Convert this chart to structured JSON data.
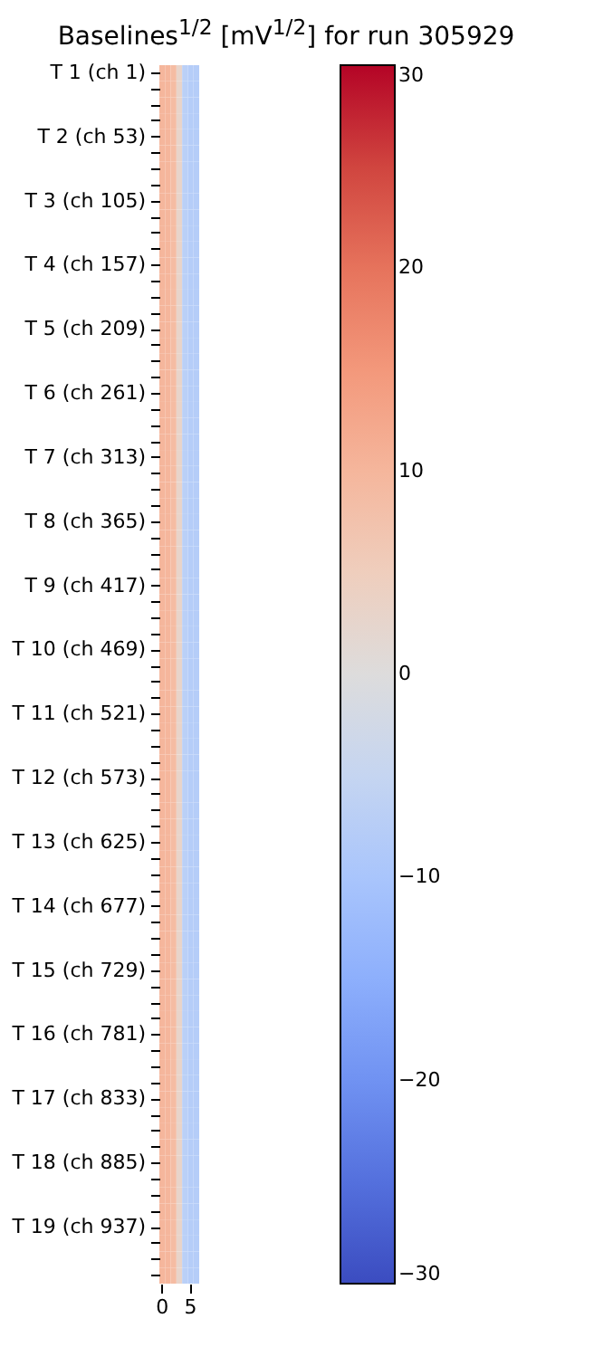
{
  "chart_data": {
    "type": "heatmap",
    "title": "Baselines$^{1/2}$ [mV$^{1/2}$] for run 305929",
    "categories": [
      "0",
      null,
      null,
      null,
      null,
      "5",
      null
    ],
    "y_categories": [
      "T 1 (ch 1)",
      null,
      null,
      null,
      "T 2 (ch 53)",
      null,
      null,
      null,
      "T 3 (ch 105)",
      null,
      null,
      null,
      "T 4 (ch 157)",
      null,
      null,
      null,
      "T 5 (ch 209)",
      null,
      null,
      null,
      "T 6 (ch 261)",
      null,
      null,
      null,
      "T 7 (ch 313)",
      null,
      null,
      null,
      "T 8 (ch 365)",
      null,
      null,
      null,
      "T 9 (ch 417)",
      null,
      null,
      null,
      "T 10 (ch 469)",
      null,
      null,
      null,
      "T 11 (ch 521)",
      null,
      null,
      null,
      "T 12 (ch 573)",
      null,
      null,
      null,
      "T 13 (ch 625)",
      null,
      null,
      null,
      "T 14 (ch 677)",
      null,
      null,
      null,
      "T 15 (ch 729)",
      null,
      null,
      null,
      "T 16 (ch 781)",
      null,
      null,
      null,
      "T 17 (ch 833)",
      null,
      null,
      null,
      "T 18 (ch 885)",
      null,
      null,
      null,
      "T 19 (ch 937)",
      null,
      null,
      null
    ],
    "cells": [
      [
        10,
        10,
        9,
        3,
        -7,
        -8,
        -8
      ],
      [
        10,
        10,
        9,
        3,
        -7,
        -8,
        -8
      ],
      [
        10,
        10,
        9,
        3,
        -7,
        -8,
        -8
      ],
      [
        10,
        10,
        9,
        3,
        -7,
        -8,
        -8
      ],
      [
        10,
        10,
        9,
        3,
        -7,
        -8,
        -8
      ],
      [
        10,
        10,
        9,
        3,
        -7,
        -8,
        -8
      ],
      [
        10,
        10,
        9,
        3,
        -7,
        -8,
        -8
      ],
      [
        10,
        10,
        9,
        3,
        -7,
        -8,
        -8
      ],
      [
        10,
        10,
        9,
        3,
        -7,
        -8,
        -8
      ],
      [
        10,
        10,
        9,
        3,
        -7,
        -8,
        -8
      ],
      [
        10,
        10,
        9,
        3,
        -7,
        -8,
        -8
      ],
      [
        10,
        10,
        9,
        3,
        -7,
        -8,
        -8
      ],
      [
        10,
        10,
        9,
        3,
        -7,
        -8,
        -8
      ],
      [
        10,
        10,
        9,
        3,
        -7,
        -8,
        -8
      ],
      [
        10,
        10,
        9,
        3,
        -7,
        -8,
        -8
      ],
      [
        10,
        10,
        9,
        3,
        -7,
        -8,
        -8
      ],
      [
        10,
        10,
        9,
        3,
        -7,
        -8,
        -8
      ],
      [
        10,
        10,
        9,
        3,
        -7,
        -8,
        -8
      ],
      [
        10,
        10,
        9,
        3,
        -7,
        -8,
        -8
      ],
      [
        10,
        10,
        9,
        3,
        -7,
        -8,
        -8
      ],
      [
        10,
        10,
        9,
        3,
        -7,
        -8,
        -8
      ],
      [
        10,
        10,
        9,
        3,
        -7,
        -8,
        -8
      ],
      [
        10,
        10,
        9,
        3,
        -7,
        -8,
        -8
      ],
      [
        10,
        10,
        9,
        3,
        -7,
        -8,
        -8
      ],
      [
        10,
        10,
        9,
        3,
        -7,
        -8,
        -8
      ],
      [
        10,
        10,
        9,
        3,
        -7,
        -8,
        -8
      ],
      [
        10,
        10,
        9,
        3,
        -7,
        -8,
        -8
      ],
      [
        10,
        10,
        9,
        3,
        -7,
        -8,
        -8
      ],
      [
        10,
        10,
        9,
        3,
        -7,
        -8,
        -8
      ],
      [
        10,
        10,
        9,
        3,
        -7,
        -8,
        -8
      ],
      [
        10,
        10,
        9,
        3,
        -7,
        -8,
        -8
      ],
      [
        10,
        10,
        9,
        3,
        -7,
        -8,
        -8
      ],
      [
        10,
        10,
        9,
        3,
        -7,
        -8,
        -8
      ],
      [
        10,
        10,
        9,
        3,
        -7,
        -8,
        -8
      ],
      [
        10,
        10,
        9,
        3,
        -7,
        -8,
        -8
      ],
      [
        10,
        10,
        9,
        3,
        -7,
        -8,
        -8
      ],
      [
        10,
        10,
        9,
        3,
        -7,
        -8,
        -8
      ],
      [
        10,
        10,
        9,
        3,
        -7,
        -8,
        -8
      ],
      [
        10,
        10,
        9,
        3,
        -7,
        -8,
        -8
      ],
      [
        10,
        10,
        9,
        3,
        -7,
        -8,
        -8
      ],
      [
        10,
        10,
        9,
        3,
        -7,
        -8,
        -8
      ],
      [
        10,
        10,
        9,
        3,
        -7,
        -8,
        -8
      ],
      [
        10,
        10,
        9,
        3,
        -7,
        -8,
        -8
      ],
      [
        10,
        10,
        9,
        3,
        -7,
        -8,
        -8
      ],
      [
        10,
        10,
        9,
        3,
        -7,
        -8,
        -8
      ],
      [
        10,
        10,
        9,
        3,
        -7,
        -8,
        -8
      ],
      [
        10,
        10,
        9,
        3,
        -7,
        -8,
        -8
      ],
      [
        10,
        10,
        9,
        3,
        -7,
        -8,
        -8
      ],
      [
        10,
        10,
        9,
        3,
        -7,
        -8,
        -8
      ],
      [
        10,
        10,
        9,
        3,
        -7,
        -8,
        -8
      ],
      [
        10,
        10,
        9,
        3,
        -7,
        -8,
        -8
      ],
      [
        10,
        10,
        9,
        3,
        -7,
        -8,
        -8
      ],
      [
        10,
        10,
        9,
        3,
        -7,
        -8,
        -8
      ],
      [
        10,
        10,
        9,
        3,
        -7,
        -8,
        -8
      ],
      [
        10,
        10,
        9,
        3,
        -7,
        -8,
        -8
      ],
      [
        10,
        10,
        9,
        3,
        -7,
        -8,
        -8
      ],
      [
        10,
        10,
        9,
        3,
        -7,
        -8,
        -8
      ],
      [
        10,
        10,
        9,
        3,
        -7,
        -8,
        -8
      ],
      [
        10,
        10,
        9,
        3,
        -7,
        -8,
        -8
      ],
      [
        10,
        10,
        9,
        3,
        -7,
        -8,
        -8
      ],
      [
        10,
        10,
        9,
        3,
        -7,
        -8,
        -8
      ],
      [
        10,
        10,
        9,
        3,
        -7,
        -8,
        -8
      ],
      [
        10,
        10,
        9,
        3,
        -7,
        -8,
        -8
      ],
      [
        10,
        10,
        9,
        3,
        -7,
        -8,
        -8
      ],
      [
        10,
        10,
        9,
        3,
        -7,
        -8,
        -8
      ],
      [
        10,
        10,
        9,
        3,
        -7,
        -8,
        -8
      ],
      [
        10,
        10,
        9,
        3,
        -7,
        -8,
        -8
      ],
      [
        10,
        10,
        9,
        3,
        -7,
        -8,
        -8
      ],
      [
        10,
        10,
        9,
        3,
        -7,
        -8,
        -8
      ],
      [
        10,
        10,
        9,
        3,
        -7,
        -8,
        -8
      ],
      [
        10,
        10,
        9,
        3,
        -7,
        -8,
        -8
      ],
      [
        10,
        10,
        9,
        3,
        -7,
        -8,
        -8
      ],
      [
        10,
        10,
        9,
        3,
        -7,
        -8,
        -8
      ],
      [
        10,
        10,
        9,
        3,
        -7,
        -8,
        -8
      ],
      [
        10,
        10,
        9,
        3,
        -7,
        -8,
        -8
      ],
      [
        10,
        10,
        9,
        3,
        -7,
        -8,
        -8
      ]
    ],
    "clim": [
      -30,
      30
    ],
    "cticks": [
      -30,
      -20,
      -10,
      0,
      10,
      20,
      30
    ]
  }
}
